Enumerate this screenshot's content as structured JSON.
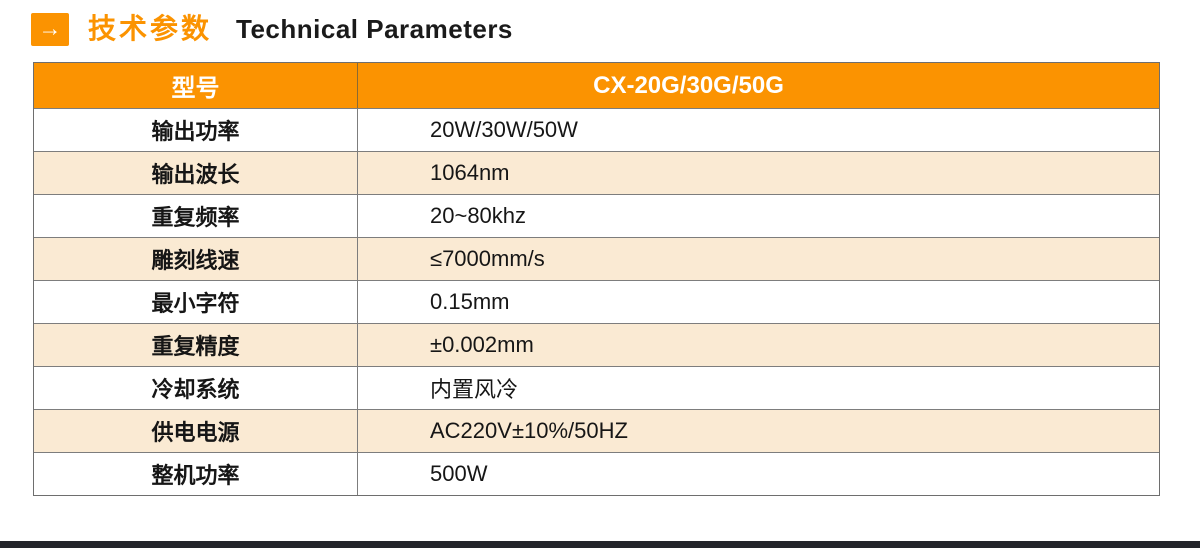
{
  "header": {
    "arrow_glyph": "→",
    "title_cn": "技术参数",
    "title_en": "Technical Parameters"
  },
  "table": {
    "header": {
      "label": "型号",
      "value": "CX-20G/30G/50G"
    },
    "rows": [
      {
        "label": "输出功率",
        "value": "20W/30W/50W"
      },
      {
        "label": "输出波长",
        "value": "1064nm"
      },
      {
        "label": "重复频率",
        "value": "20~80khz"
      },
      {
        "label": "雕刻线速",
        "value": "≤7000mm/s"
      },
      {
        "label": "最小字符",
        "value": "0.15mm"
      },
      {
        "label": "重复精度",
        "value": "±0.002mm"
      },
      {
        "label": "冷却系统",
        "value": "内置风冷"
      },
      {
        "label": "供电电源",
        "value": "AC220V±10%/50HZ"
      },
      {
        "label": "整机功率",
        "value": "500W"
      }
    ]
  },
  "colors": {
    "accent_orange": "#fb9301",
    "row_alt_cream": "#faead3",
    "border_gray": "#7d7d7d",
    "footer_bar_dark": "#24252b",
    "text_dark": "#161616"
  }
}
